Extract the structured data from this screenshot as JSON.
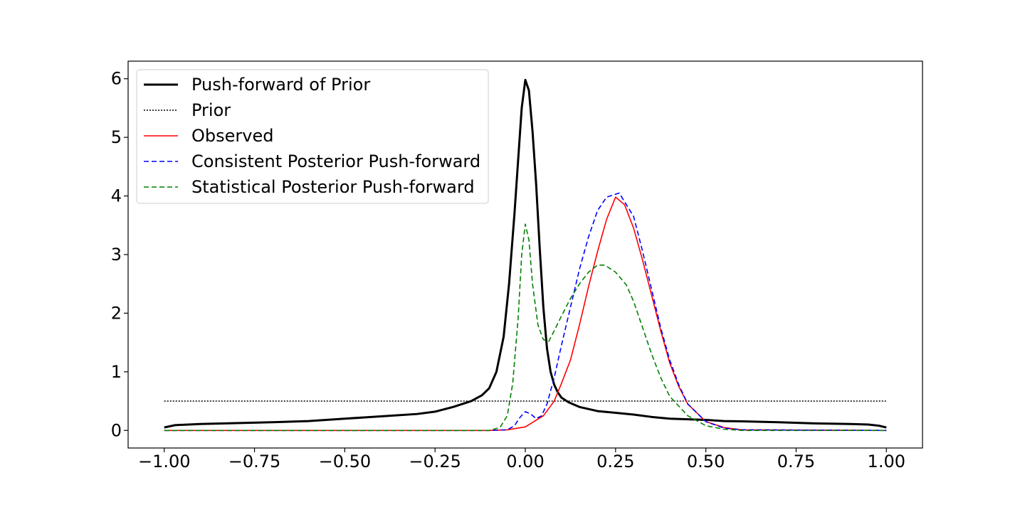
{
  "chart_data": {
    "type": "line",
    "title": "",
    "xlabel": "",
    "ylabel": "",
    "xlim": [
      -1.1,
      1.1
    ],
    "ylim": [
      -0.3,
      6.3
    ],
    "grid": false,
    "legend_position": "top-left",
    "x_ticks": [
      -1.0,
      -0.75,
      -0.5,
      -0.25,
      0.0,
      0.25,
      0.5,
      0.75,
      1.0
    ],
    "x_tick_labels": [
      "−1.00",
      "−0.75",
      "−0.50",
      "−0.25",
      "0.00",
      "0.25",
      "0.50",
      "0.75",
      "1.00"
    ],
    "y_ticks": [
      0,
      1,
      2,
      3,
      4,
      5,
      6
    ],
    "y_tick_labels": [
      "0",
      "1",
      "2",
      "3",
      "4",
      "5",
      "6"
    ],
    "series": [
      {
        "name": "Push-forward of Prior",
        "color": "#000000",
        "style": "solid",
        "points": [
          [
            -1.0,
            0.05
          ],
          [
            -0.97,
            0.09
          ],
          [
            -0.9,
            0.11
          ],
          [
            -0.8,
            0.125
          ],
          [
            -0.7,
            0.14
          ],
          [
            -0.6,
            0.16
          ],
          [
            -0.5,
            0.2
          ],
          [
            -0.4,
            0.24
          ],
          [
            -0.3,
            0.28
          ],
          [
            -0.25,
            0.32
          ],
          [
            -0.2,
            0.4
          ],
          [
            -0.15,
            0.5
          ],
          [
            -0.12,
            0.6
          ],
          [
            -0.1,
            0.72
          ],
          [
            -0.08,
            1.0
          ],
          [
            -0.06,
            1.6
          ],
          [
            -0.045,
            2.5
          ],
          [
            -0.03,
            3.7
          ],
          [
            -0.02,
            4.6
          ],
          [
            -0.01,
            5.5
          ],
          [
            0.0,
            5.98
          ],
          [
            0.01,
            5.8
          ],
          [
            0.02,
            5.1
          ],
          [
            0.03,
            4.2
          ],
          [
            0.04,
            3.1
          ],
          [
            0.05,
            2.1
          ],
          [
            0.06,
            1.4
          ],
          [
            0.07,
            1.0
          ],
          [
            0.08,
            0.78
          ],
          [
            0.09,
            0.65
          ],
          [
            0.1,
            0.56
          ],
          [
            0.12,
            0.48
          ],
          [
            0.15,
            0.4
          ],
          [
            0.2,
            0.33
          ],
          [
            0.25,
            0.3
          ],
          [
            0.3,
            0.27
          ],
          [
            0.35,
            0.23
          ],
          [
            0.4,
            0.2
          ],
          [
            0.5,
            0.18
          ],
          [
            0.55,
            0.16
          ],
          [
            0.6,
            0.155
          ],
          [
            0.7,
            0.14
          ],
          [
            0.8,
            0.12
          ],
          [
            0.9,
            0.11
          ],
          [
            0.95,
            0.1
          ],
          [
            0.98,
            0.08
          ],
          [
            1.0,
            0.05
          ]
        ]
      },
      {
        "name": "Prior",
        "color": "#000000",
        "style": "dotted",
        "points": [
          [
            -1.0,
            0.5
          ],
          [
            1.0,
            0.5
          ]
        ]
      },
      {
        "name": "Observed",
        "color": "#ff0000",
        "style": "solid",
        "points": [
          [
            -1.0,
            0.0
          ],
          [
            -0.1,
            0.0
          ],
          [
            -0.05,
            0.01
          ],
          [
            0.0,
            0.06
          ],
          [
            0.05,
            0.25
          ],
          [
            0.08,
            0.5
          ],
          [
            0.1,
            0.8
          ],
          [
            0.125,
            1.2
          ],
          [
            0.15,
            1.8
          ],
          [
            0.175,
            2.45
          ],
          [
            0.2,
            3.05
          ],
          [
            0.225,
            3.6
          ],
          [
            0.25,
            3.98
          ],
          [
            0.275,
            3.85
          ],
          [
            0.3,
            3.45
          ],
          [
            0.325,
            2.9
          ],
          [
            0.35,
            2.3
          ],
          [
            0.375,
            1.7
          ],
          [
            0.4,
            1.15
          ],
          [
            0.425,
            0.75
          ],
          [
            0.45,
            0.45
          ],
          [
            0.5,
            0.15
          ],
          [
            0.55,
            0.05
          ],
          [
            0.6,
            0.01
          ],
          [
            1.0,
            0.0
          ]
        ]
      },
      {
        "name": "Consistent Posterior Push-forward",
        "color": "#0000ff",
        "style": "dashed",
        "points": [
          [
            -1.0,
            0.0
          ],
          [
            -0.1,
            0.0
          ],
          [
            -0.05,
            0.01
          ],
          [
            -0.03,
            0.08
          ],
          [
            -0.015,
            0.22
          ],
          [
            0.0,
            0.32
          ],
          [
            0.015,
            0.28
          ],
          [
            0.03,
            0.2
          ],
          [
            0.045,
            0.25
          ],
          [
            0.06,
            0.45
          ],
          [
            0.08,
            0.9
          ],
          [
            0.1,
            1.45
          ],
          [
            0.125,
            2.1
          ],
          [
            0.15,
            2.75
          ],
          [
            0.175,
            3.3
          ],
          [
            0.2,
            3.75
          ],
          [
            0.225,
            3.98
          ],
          [
            0.26,
            4.05
          ],
          [
            0.3,
            3.65
          ],
          [
            0.325,
            3.05
          ],
          [
            0.35,
            2.4
          ],
          [
            0.375,
            1.75
          ],
          [
            0.4,
            1.2
          ],
          [
            0.425,
            0.78
          ],
          [
            0.45,
            0.45
          ],
          [
            0.5,
            0.15
          ],
          [
            0.55,
            0.04
          ],
          [
            0.6,
            0.01
          ],
          [
            1.0,
            0.0
          ]
        ]
      },
      {
        "name": "Statistical Posterior Push-forward",
        "color": "#008000",
        "style": "dashed",
        "points": [
          [
            -1.0,
            0.0
          ],
          [
            -0.1,
            0.0
          ],
          [
            -0.07,
            0.05
          ],
          [
            -0.05,
            0.25
          ],
          [
            -0.035,
            0.8
          ],
          [
            -0.02,
            1.9
          ],
          [
            -0.01,
            3.0
          ],
          [
            0.0,
            3.52
          ],
          [
            0.01,
            3.25
          ],
          [
            0.02,
            2.5
          ],
          [
            0.035,
            1.8
          ],
          [
            0.05,
            1.55
          ],
          [
            0.065,
            1.52
          ],
          [
            0.08,
            1.7
          ],
          [
            0.1,
            1.95
          ],
          [
            0.125,
            2.25
          ],
          [
            0.15,
            2.5
          ],
          [
            0.175,
            2.7
          ],
          [
            0.2,
            2.82
          ],
          [
            0.22,
            2.82
          ],
          [
            0.25,
            2.7
          ],
          [
            0.28,
            2.48
          ],
          [
            0.3,
            2.2
          ],
          [
            0.325,
            1.75
          ],
          [
            0.35,
            1.3
          ],
          [
            0.375,
            0.9
          ],
          [
            0.4,
            0.58
          ],
          [
            0.45,
            0.25
          ],
          [
            0.5,
            0.08
          ],
          [
            0.55,
            0.02
          ],
          [
            0.6,
            0.0
          ],
          [
            1.0,
            0.0
          ]
        ]
      }
    ]
  }
}
